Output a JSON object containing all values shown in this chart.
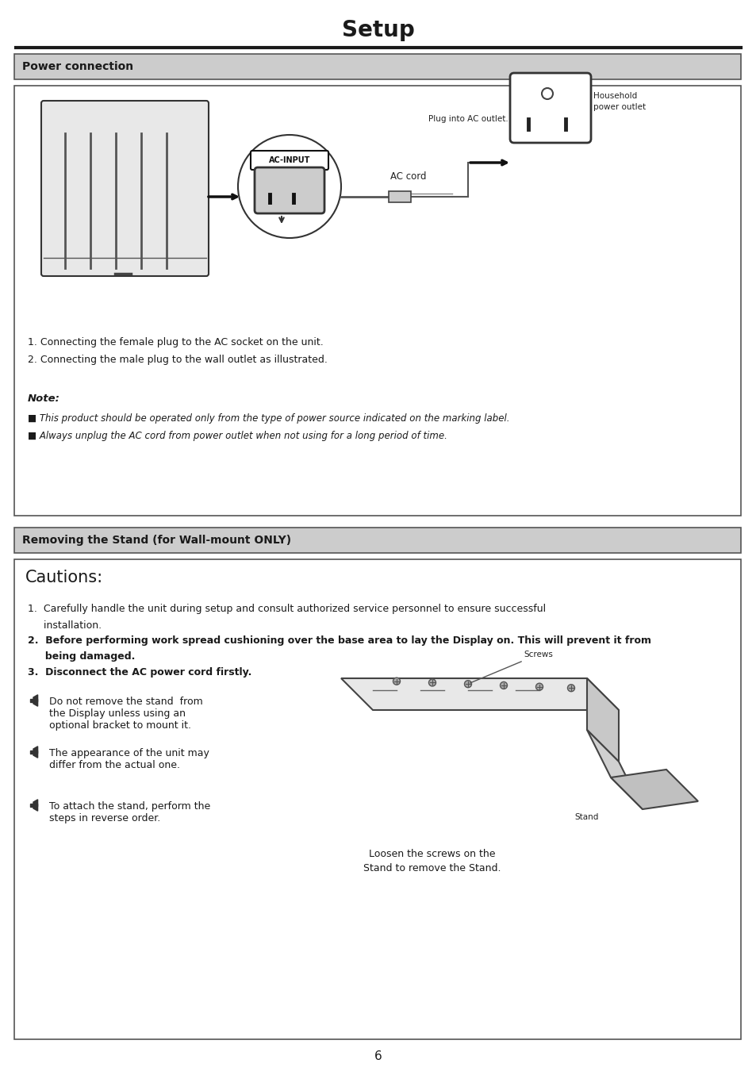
{
  "title": "Setup",
  "page_number": "6",
  "bg_color": "#ffffff",
  "title_fontsize": 20,
  "section1_header": "Power connection",
  "section1_items": [
    "1. Connecting the female plug to the AC socket on the unit.",
    "2. Connecting the male plug to the wall outlet as illustrated."
  ],
  "note_header": "Note:",
  "note_items": [
    "■ This product should be operated only from the type of power source indicated on the marking label.",
    "■ Always unplug the AC cord from power outlet when not using for a long period of time."
  ],
  "section2_header": "Removing the Stand (for Wall-mount ONLY)",
  "cautions_header": "Cautions:",
  "bullet_items": [
    "Do not remove the stand  from\nthe Display unless using an\noptional bracket to mount it.",
    "The appearance of the unit may\ndiffer from the actual one.",
    "To attach the stand, perform the\nsteps in reverse order."
  ],
  "stand_caption": "Loosen the screws on the\nStand to remove the Stand.",
  "screws_label": "Screws",
  "stand_label": "Stand"
}
